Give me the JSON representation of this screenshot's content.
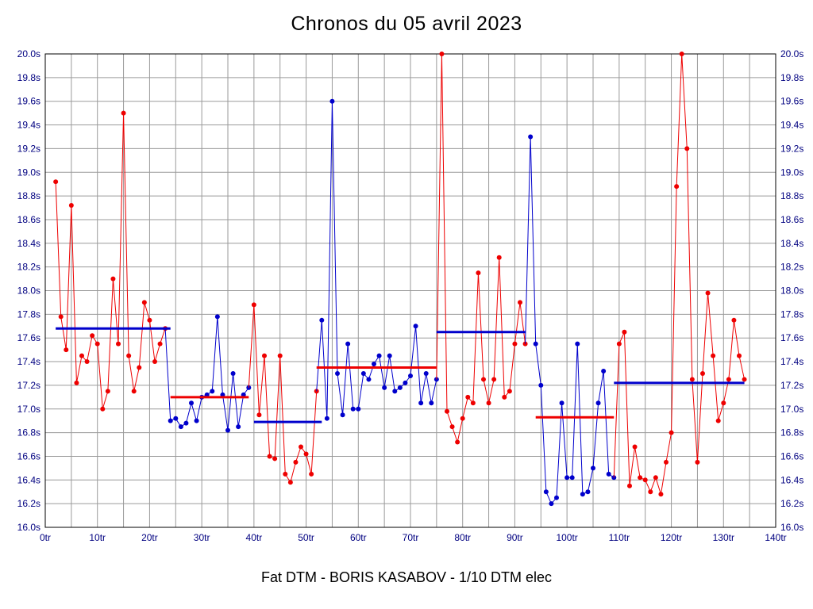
{
  "colors": {
    "red_series": "#ee0000",
    "blue_series": "#0000cc",
    "grid": "#9a9a9a",
    "axis": "#000000",
    "tick_label": "#000080",
    "background": "#ffffff"
  },
  "chart_data": {
    "type": "line",
    "title": "Chronos du 05 avril 2023",
    "footer": "Fat DTM - BORIS KASABOV - 1/10 DTM elec",
    "xlabel": "",
    "ylabel": "",
    "x_unit": "tr",
    "y_unit": "s",
    "xlim": [
      0,
      140
    ],
    "ylim": [
      16.0,
      20.0
    ],
    "x_tick_step": 10,
    "x_grid_step": 5,
    "y_tick_step": 0.2,
    "grid": true,
    "legend_position": "none",
    "point_radius": 3,
    "segments": [
      {
        "name": "stint-1-red",
        "color": "red",
        "start_lap": 2,
        "values": [
          18.92,
          17.78,
          17.5,
          18.72,
          17.22,
          17.45,
          17.4,
          17.62,
          17.55,
          17.0,
          17.15,
          18.1,
          17.55,
          19.5,
          17.45,
          17.15,
          17.35,
          17.9,
          17.75,
          17.4,
          17.55,
          17.68
        ]
      },
      {
        "name": "stint-2-blue",
        "color": "blue",
        "start_lap": 24,
        "values": [
          16.9,
          16.92,
          16.85,
          16.88,
          17.05,
          16.9,
          17.1,
          17.12,
          17.15,
          17.78,
          17.12,
          16.82,
          17.3,
          16.85,
          17.12,
          17.18
        ]
      },
      {
        "name": "stint-3-red",
        "color": "red",
        "start_lap": 40,
        "values": [
          17.88,
          16.95,
          17.45,
          16.6,
          16.58,
          17.45,
          16.45,
          16.38,
          16.55,
          16.68,
          16.62,
          16.45,
          17.15
        ]
      },
      {
        "name": "stint-4-blue",
        "color": "blue",
        "start_lap": 53,
        "values": [
          17.75,
          16.92,
          19.6,
          17.3,
          16.95,
          17.55,
          17.0,
          17.0,
          17.3,
          17.25,
          17.38,
          17.45,
          17.18,
          17.45,
          17.15,
          17.18,
          17.22,
          17.28,
          17.7,
          17.05,
          17.3,
          17.05,
          17.25
        ]
      },
      {
        "name": "stint-5-red",
        "color": "red",
        "start_lap": 76,
        "values": [
          20.0,
          16.98,
          16.85,
          16.72,
          16.92,
          17.1,
          17.05,
          18.15,
          17.25,
          17.05,
          17.25,
          18.28,
          17.1,
          17.15,
          17.55,
          17.9,
          17.55
        ]
      },
      {
        "name": "stint-6-blue",
        "color": "blue",
        "start_lap": 93,
        "values": [
          19.3,
          17.55,
          17.2,
          16.3,
          16.2,
          16.25,
          17.05,
          16.42,
          16.42,
          17.55,
          16.28,
          16.3,
          16.5,
          17.05,
          17.32,
          16.45,
          16.42
        ]
      },
      {
        "name": "stint-7-red",
        "color": "red",
        "start_lap": 110,
        "values": [
          17.55,
          17.65,
          16.35,
          16.68,
          16.42,
          16.4,
          16.3,
          16.42,
          16.28,
          16.55,
          16.8,
          18.88,
          20.0,
          19.2,
          17.25,
          16.55,
          17.3,
          17.98,
          17.45,
          16.9,
          17.05,
          17.25,
          17.75,
          17.45,
          17.25
        ]
      }
    ],
    "mean_lines": [
      {
        "color": "blue",
        "from_lap": 2,
        "to_lap": 24,
        "value": 17.68
      },
      {
        "color": "red",
        "from_lap": 24,
        "to_lap": 39,
        "value": 17.1
      },
      {
        "color": "blue",
        "from_lap": 40,
        "to_lap": 53,
        "value": 16.89
      },
      {
        "color": "red",
        "from_lap": 52,
        "to_lap": 75,
        "value": 17.35
      },
      {
        "color": "blue",
        "from_lap": 75,
        "to_lap": 92,
        "value": 17.65
      },
      {
        "color": "red",
        "from_lap": 94,
        "to_lap": 109,
        "value": 16.93
      },
      {
        "color": "blue",
        "from_lap": 109,
        "to_lap": 134,
        "value": 17.22
      }
    ]
  }
}
